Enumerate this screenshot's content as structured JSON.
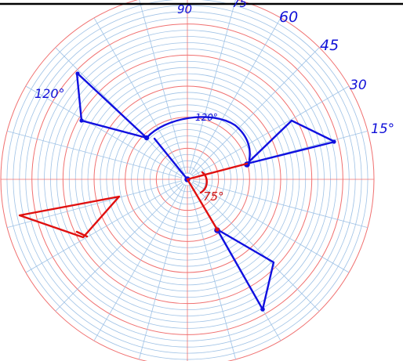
{
  "colors": {
    "background": "#ffffff",
    "top_rule": "#000000",
    "grid_minor": "#9fc2e6",
    "grid_major": "#f07070",
    "ink_blue": "#1010e0",
    "ink_red": "#e01010"
  },
  "grid": {
    "ring_count": 30,
    "major_every": 5,
    "spoke_step_deg": 15
  },
  "annotations": {
    "label_90": "90",
    "label_75": "75",
    "label_60": "60",
    "label_45": "45",
    "label_30": "30",
    "label_15": "15°",
    "label_120_outer": "120°",
    "label_120_arc": "120°",
    "label_75_arc": "75°"
  }
}
